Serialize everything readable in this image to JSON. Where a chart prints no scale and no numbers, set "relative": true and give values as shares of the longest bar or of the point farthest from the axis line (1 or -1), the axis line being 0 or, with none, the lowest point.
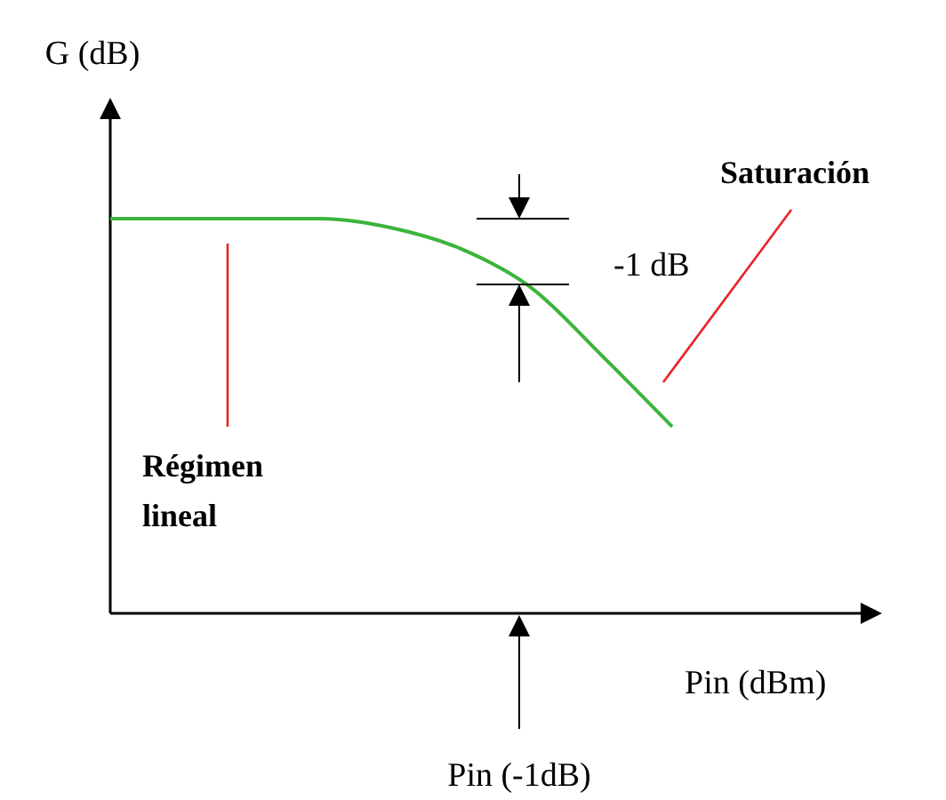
{
  "chart_data": {
    "type": "line",
    "relative": true,
    "xlabel": "Pin (dBm)",
    "ylabel": "G (dB)",
    "categories": [
      null,
      null,
      null,
      null,
      null,
      null,
      null,
      null,
      null
    ],
    "values": [
      1,
      1,
      1,
      1,
      0.977,
      0.923,
      0.824,
      0.653,
      0.473
    ],
    "color": "#3cb43c",
    "annotations": [
      "-1 dB",
      "Saturación",
      "Régimen lineal",
      "Pin (-1dB)"
    ]
  }
}
